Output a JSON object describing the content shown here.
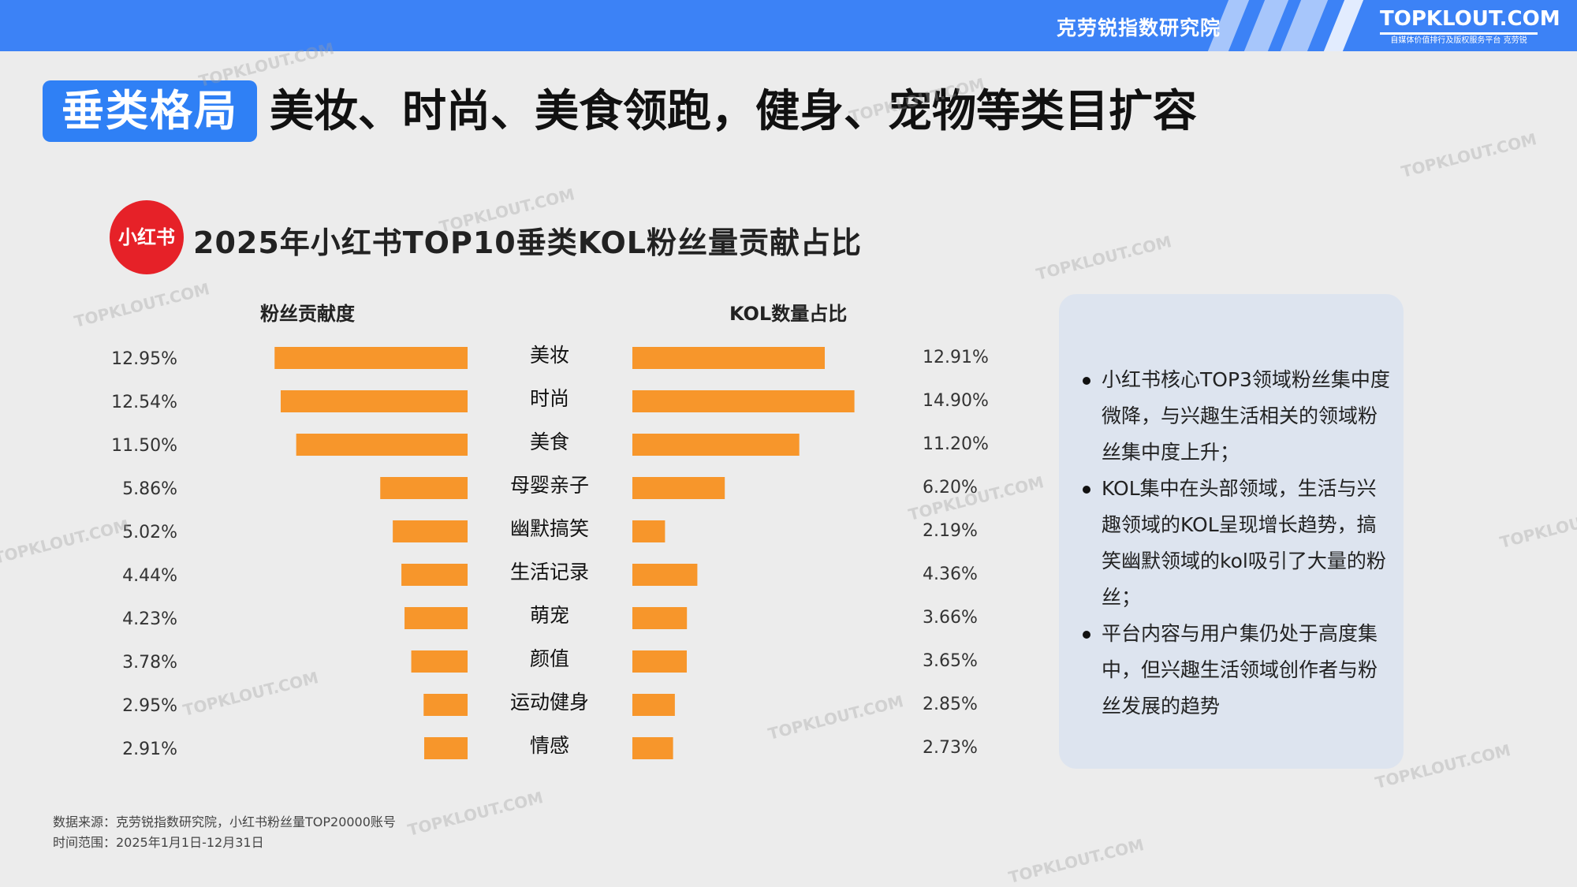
{
  "header": {
    "org_name": "克劳锐指数研究院",
    "brand": "TOPKLOUT.COM",
    "brand_sub": "自媒体价值排行及版权服务平台 克劳锐"
  },
  "title": {
    "tag": "垂类格局",
    "text": "美妆、时尚、美食领跑，健身、宠物等类目扩容"
  },
  "logo_text": "小红书",
  "chart_data": {
    "type": "bar",
    "title": "2025年小红书TOP10垂类KOL粉丝量贡献占比",
    "categories": [
      "美妆",
      "时尚",
      "美食",
      "母婴亲子",
      "幽默搞笑",
      "生活记录",
      "萌宠",
      "颜值",
      "运动健身",
      "情感"
    ],
    "series": [
      {
        "name": "粉丝贡献度",
        "values": [
          12.95,
          12.54,
          11.5,
          5.86,
          5.02,
          4.44,
          4.23,
          3.78,
          2.95,
          2.91
        ],
        "labels": [
          "12.95%",
          "12.54%",
          "11.50%",
          "5.86%",
          "5.02%",
          "4.44%",
          "4.23%",
          "3.78%",
          "2.95%",
          "2.91%"
        ]
      },
      {
        "name": "KOL数量占比",
        "values": [
          12.91,
          14.9,
          11.2,
          6.2,
          2.19,
          4.36,
          3.66,
          3.65,
          2.85,
          2.73
        ],
        "labels": [
          "12.91%",
          "14.90%",
          "11.20%",
          "6.20%",
          "2.19%",
          "4.36%",
          "3.66%",
          "3.65%",
          "2.85%",
          "2.73%"
        ]
      }
    ],
    "bar_color": "#f7962b"
  },
  "notes": [
    "小红书核心TOP3领域粉丝集中度微降，与兴趣生活相关的领域粉丝集中度上升；",
    "KOL集中在头部领域，生活与兴趣领域的KOL呈现增长趋势，搞笑幽默领域的kol吸引了大量的粉丝；",
    "平台内容与用户集仍处于高度集中，但兴趣生活领域创作者与粉丝发展的趋势"
  ],
  "footer": {
    "source": "数据来源：克劳锐指数研究院，小红书粉丝量TOP20000账号",
    "period": "时间范围：2025年1月1日-12月31日"
  },
  "watermark": "TOPKLOUT.COM"
}
